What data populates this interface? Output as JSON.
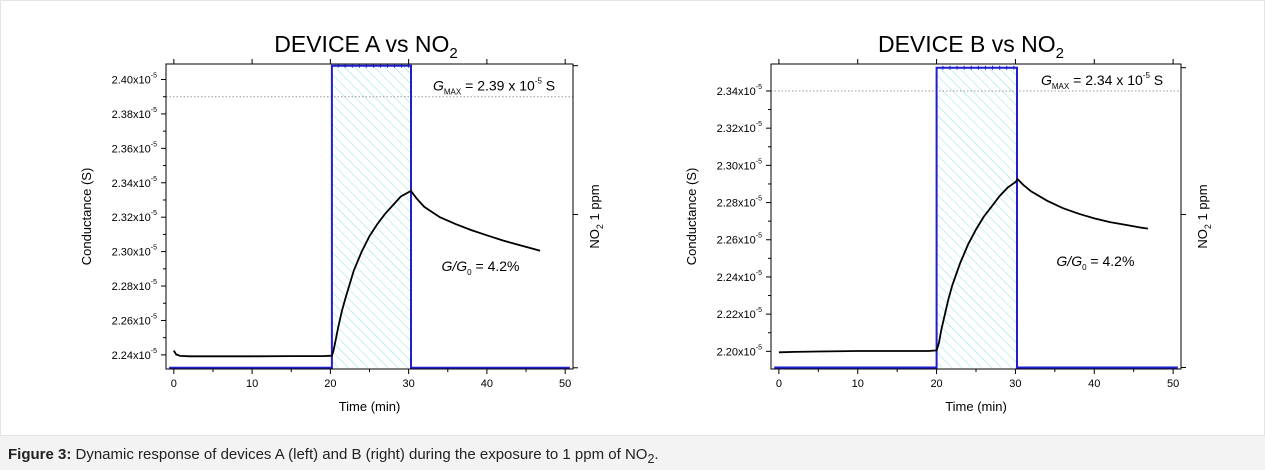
{
  "caption": {
    "label": "Figure 3:",
    "text_before": " Dynamic response of devices A (left) and B (right) during the exposure to 1 ppm of NO",
    "sub": "2",
    "text_after": "."
  },
  "colors": {
    "conductance": "#000000",
    "gas_pulse": "#1f1fd0",
    "hatch": "#8fe0e6",
    "gmax_line": "#9a9a9a"
  },
  "chart_data": [
    {
      "type": "line",
      "title": "DEVICE A vs NO",
      "title_sub": "2",
      "xlabel": "Time (min)",
      "ylabel": "Conductance (S)",
      "ylabel_right": "NO",
      "ylabel_right_sub": "2",
      "ylabel_right_after": " 1 ppm",
      "xlim": [
        -1,
        51
      ],
      "ylim": [
        2.2318e-05,
        2.409e-05
      ],
      "xticks": [
        0,
        10,
        20,
        30,
        40,
        50
      ],
      "yticks": [
        2.24e-05,
        2.26e-05,
        2.28e-05,
        2.3e-05,
        2.32e-05,
        2.34e-05,
        2.36e-05,
        2.38e-05,
        2.4e-05
      ],
      "ytick_labels": [
        "2.24x10",
        "2.26x10",
        "2.28x10",
        "2.30x10",
        "2.32x10",
        "2.34x10",
        "2.36x10",
        "2.38x10",
        "2.40x10"
      ],
      "ytick_exp": "-5",
      "gmax_value": 2.39e-05,
      "gmax_label_pre": "G",
      "gmax_label_sub": "MAX",
      "gmax_label_post": " = 2.39 x 10",
      "gmax_label_exp": "-5",
      "gmax_label_unit": " S",
      "ratio_label_pre": "G/G",
      "ratio_label_sub": "0",
      "ratio_label_post": " = 4.2%",
      "exposure": {
        "start": 20.2,
        "end": 30.3,
        "on_level": 2.408e-05,
        "off_level": 2.2325e-05
      },
      "series": [
        {
          "x": [
            0.0,
            0.3,
            0.8,
            2,
            5,
            10,
            15,
            19,
            20.2,
            20.4,
            20.7,
            21,
            21.5,
            22,
            23,
            24,
            25,
            26,
            27,
            28,
            29,
            30.0,
            30.3,
            31,
            32,
            34,
            36,
            38,
            40,
            42,
            44,
            46,
            46.8
          ],
          "y": [
            2.2425e-05,
            2.2402e-05,
            2.2394e-05,
            2.2392e-05,
            2.2392e-05,
            2.2392e-05,
            2.2393e-05,
            2.2393e-05,
            2.2395e-05,
            2.2425e-05,
            2.249e-05,
            2.256e-05,
            2.266e-05,
            2.274e-05,
            2.289e-05,
            2.3e-05,
            2.309e-05,
            2.316e-05,
            2.322e-05,
            2.327e-05,
            2.332e-05,
            2.3345e-05,
            2.3352e-05,
            2.331e-05,
            2.326e-05,
            2.32e-05,
            2.316e-05,
            2.3125e-05,
            2.3095e-05,
            2.3065e-05,
            2.304e-05,
            2.3015e-05,
            2.3005e-05
          ]
        }
      ]
    },
    {
      "type": "line",
      "title": "DEVICE B vs NO",
      "title_sub": "2",
      "xlabel": "Time (min)",
      "ylabel": "Conductance (S)",
      "ylabel_right": "NO",
      "ylabel_right_sub": "2",
      "ylabel_right_after": " 1 ppm",
      "xlim": [
        -1,
        51
      ],
      "ylim": [
        2.1905e-05,
        2.3545e-05
      ],
      "xticks": [
        0,
        10,
        20,
        30,
        40,
        50
      ],
      "yticks": [
        2.2e-05,
        2.22e-05,
        2.24e-05,
        2.26e-05,
        2.28e-05,
        2.3e-05,
        2.32e-05,
        2.34e-05
      ],
      "ytick_labels": [
        "2.20x10",
        "2.22x10",
        "2.24x10",
        "2.26x10",
        "2.28x10",
        "2.30x10",
        "2.32x10",
        "2.34x10"
      ],
      "ytick_exp": "-5",
      "gmax_value": 2.34e-05,
      "gmax_label_pre": "G",
      "gmax_label_sub": "MAX",
      "gmax_label_post": " = 2.34 x 10",
      "gmax_label_exp": "-5",
      "gmax_label_unit": " S",
      "ratio_label_pre": "G/G",
      "ratio_label_sub": "0",
      "ratio_label_post": " = 4.2%",
      "exposure": {
        "start": 20.0,
        "end": 30.2,
        "on_level": 2.3525e-05,
        "off_level": 2.1913e-05
      },
      "series": [
        {
          "x": [
            0.0,
            2,
            5,
            10,
            15,
            19,
            20.0,
            20.3,
            20.6,
            21,
            21.5,
            22,
            23,
            24,
            25,
            26,
            27,
            28,
            29,
            30.0,
            30.3,
            31,
            32,
            34,
            36,
            38,
            40,
            42,
            44,
            46,
            46.8
          ],
          "y": [
            2.1995e-05,
            2.1997e-05,
            2.1999e-05,
            2.2002e-05,
            2.2002e-05,
            2.2002e-05,
            2.2005e-05,
            2.2045e-05,
            2.2115e-05,
            2.219e-05,
            2.228e-05,
            2.2355e-05,
            2.2475e-05,
            2.2575e-05,
            2.2655e-05,
            2.2725e-05,
            2.278e-05,
            2.2835e-05,
            2.288e-05,
            2.291e-05,
            2.2925e-05,
            2.2895e-05,
            2.286e-05,
            2.281e-05,
            2.277e-05,
            2.274e-05,
            2.2715e-05,
            2.2695e-05,
            2.268e-05,
            2.2665e-05,
            2.266e-05
          ]
        }
      ]
    }
  ]
}
